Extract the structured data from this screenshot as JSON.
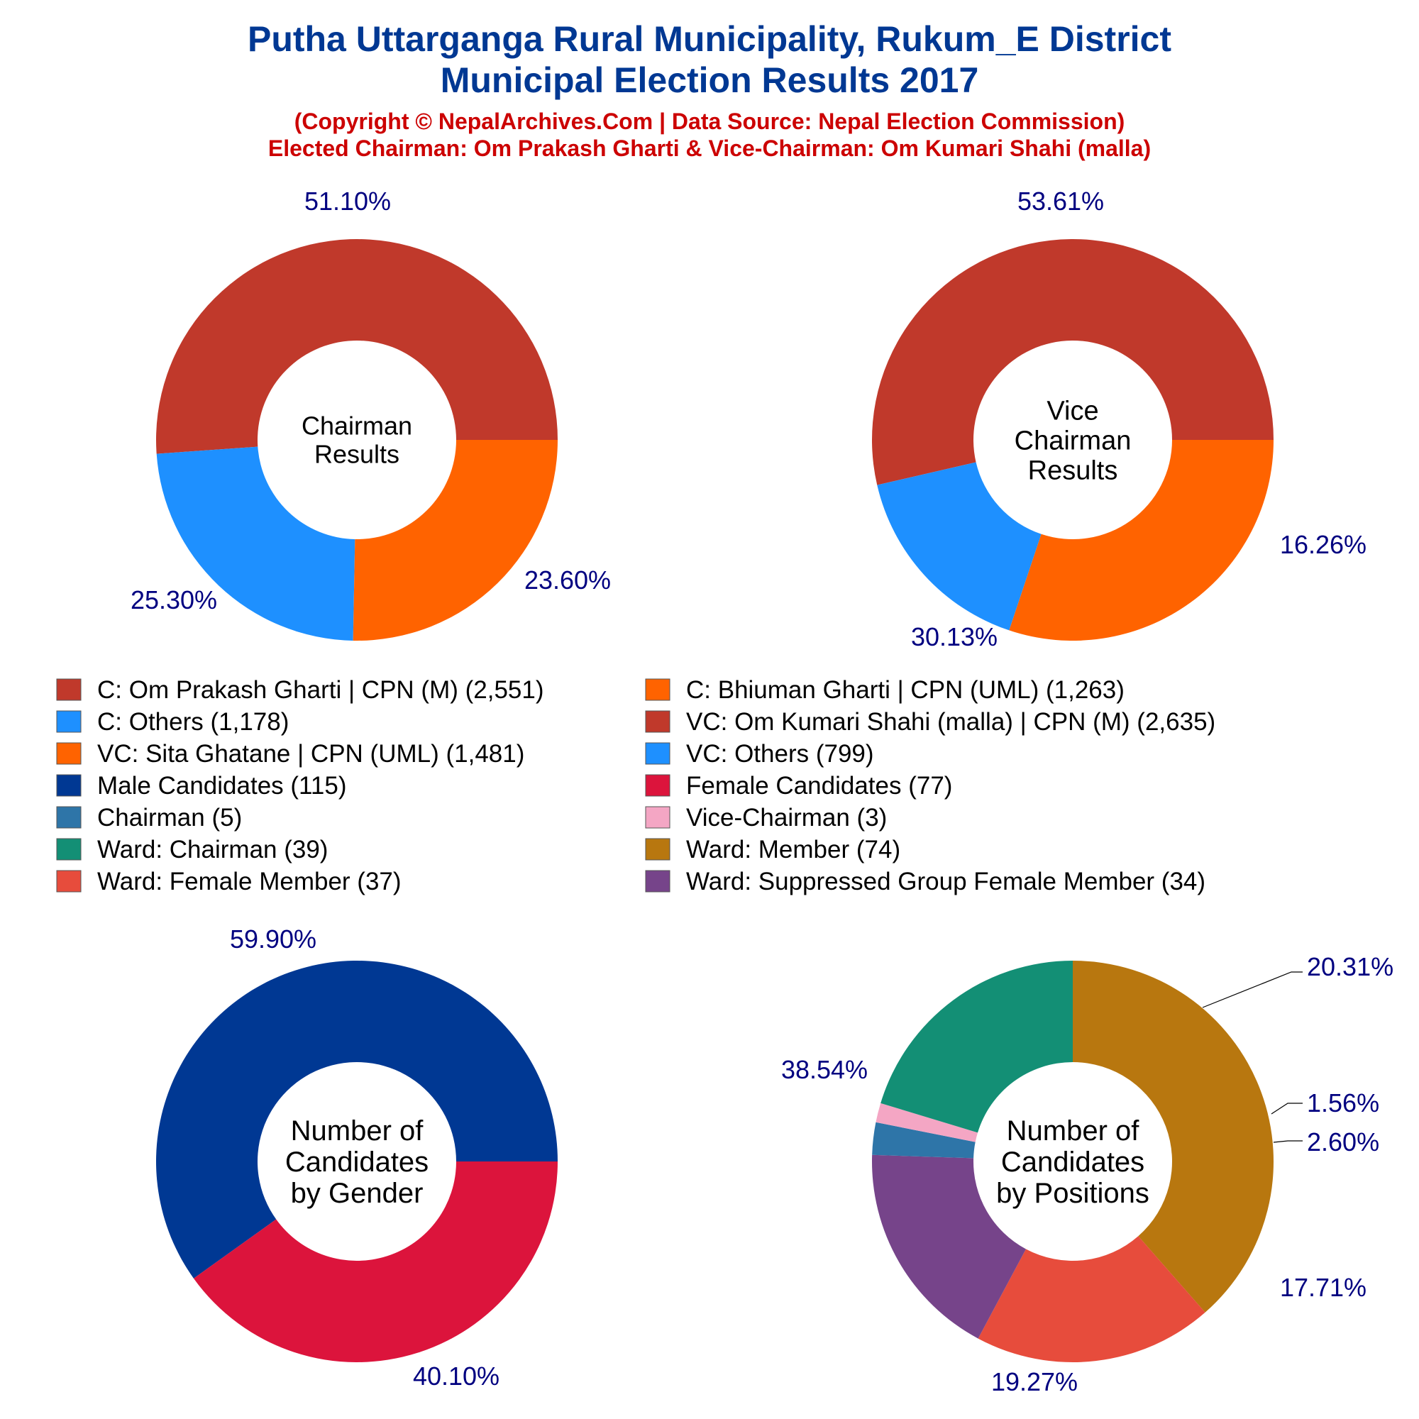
{
  "header": {
    "title_line1": "Putha Uttarganga Rural Municipality, Rukum_E District",
    "title_line2": "Municipal Election Results 2017",
    "subtitle_line1": "(Copyright © NepalArchives.Com | Data Source: Nepal Election Commission)",
    "subtitle_line2": "Elected Chairman: Om Prakash Gharti & Vice-Chairman: Om Kumari Shahi (malla)"
  },
  "legend": [
    {
      "label": "C: Om Prakash Gharti | CPN (M) (2,551)",
      "color": "#C0392B"
    },
    {
      "label": "C: Bhiuman Gharti | CPN (UML) (1,263)",
      "color": "#FF6300"
    },
    {
      "label": "C: Others (1,178)",
      "color": "#1E90FF"
    },
    {
      "label": "VC: Om Kumari Shahi (malla) | CPN (M) (2,635)",
      "color": "#C0392B"
    },
    {
      "label": "VC: Sita Ghatane | CPN (UML) (1,481)",
      "color": "#FF6300"
    },
    {
      "label": "VC: Others (799)",
      "color": "#1E90FF"
    },
    {
      "label": "Male Candidates (115)",
      "color": "#003893"
    },
    {
      "label": "Female Candidates (77)",
      "color": "#DC143C"
    },
    {
      "label": "Chairman (5)",
      "color": "#2E75A8"
    },
    {
      "label": "Vice-Chairman (3)",
      "color": "#F4A6C4"
    },
    {
      "label": "Ward: Chairman (39)",
      "color": "#138F75"
    },
    {
      "label": "Ward: Member (74)",
      "color": "#B8770F"
    },
    {
      "label": "Ward: Female Member (37)",
      "color": "#E74C3C"
    },
    {
      "label": "Ward: Suppressed Group Female Member (34)",
      "color": "#76448A"
    }
  ],
  "chart_data": [
    {
      "type": "pie",
      "center_label": [
        "Chairman",
        "Results"
      ],
      "slices": [
        {
          "name": "C: Om Prakash Gharti | CPN (M)",
          "value": 2551,
          "pct_label": "51.10%",
          "color": "#C0392B"
        },
        {
          "name": "C: Others",
          "value": 1178,
          "pct_label": "23.60%",
          "color": "#1E90FF"
        },
        {
          "name": "C: Bhiuman Gharti | CPN (UML)",
          "value": 1263,
          "pct_label": "25.30%",
          "color": "#FF6300"
        }
      ]
    },
    {
      "type": "pie",
      "center_label": [
        "Vice",
        "Chairman",
        "Results"
      ],
      "slices": [
        {
          "name": "VC: Om Kumari Shahi (malla) | CPN (M)",
          "value": 2635,
          "pct_label": "53.61%",
          "color": "#C0392B"
        },
        {
          "name": "VC: Others",
          "value": 799,
          "pct_label": "16.26%",
          "color": "#1E90FF"
        },
        {
          "name": "VC: Sita Ghatane | CPN (UML)",
          "value": 1481,
          "pct_label": "30.13%",
          "color": "#FF6300"
        }
      ]
    },
    {
      "type": "pie",
      "center_label": [
        "Number of",
        "Candidates",
        "by Gender"
      ],
      "slices": [
        {
          "name": "Male Candidates",
          "value": 115,
          "pct_label": "59.90%",
          "color": "#003893"
        },
        {
          "name": "Female Candidates",
          "value": 77,
          "pct_label": "40.10%",
          "color": "#DC143C"
        }
      ]
    },
    {
      "type": "pie",
      "center_label": [
        "Number of",
        "Candidates",
        "by Positions"
      ],
      "slices": [
        {
          "name": "Ward: Member",
          "value": 74,
          "pct_label": "38.54%",
          "color": "#B8770F"
        },
        {
          "name": "Ward: Chairman",
          "value": 39,
          "pct_label": "20.31%",
          "color": "#138F75"
        },
        {
          "name": "Vice-Chairman",
          "value": 3,
          "pct_label": "1.56%",
          "color": "#F4A6C4"
        },
        {
          "name": "Chairman",
          "value": 5,
          "pct_label": "2.60%",
          "color": "#2E75A8"
        },
        {
          "name": "Ward: Suppressed Group Female Member",
          "value": 34,
          "pct_label": "17.71%",
          "color": "#76448A"
        },
        {
          "name": "Ward: Female Member",
          "value": 37,
          "pct_label": "19.27%",
          "color": "#E74C3C"
        }
      ]
    }
  ]
}
